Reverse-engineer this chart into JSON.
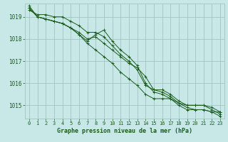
{
  "background_color": "#c8e8e8",
  "plot_bg_color": "#c8e8e8",
  "grid_color": "#a0c4c4",
  "line_color": "#1a5c1a",
  "marker_color": "#1a5c1a",
  "xlabel": "Graphe pression niveau de la mer (hPa)",
  "ylim": [
    1014.4,
    1019.6
  ],
  "xlim": [
    -0.5,
    23.5
  ],
  "yticks": [
    1015,
    1016,
    1017,
    1018,
    1019
  ],
  "xticks": [
    0,
    1,
    2,
    3,
    4,
    5,
    6,
    7,
    8,
    9,
    10,
    11,
    12,
    13,
    14,
    15,
    16,
    17,
    18,
    19,
    20,
    21,
    22,
    23
  ],
  "series": [
    [
      1019.3,
      1019.1,
      1019.1,
      1019.0,
      1019.0,
      1018.8,
      1018.6,
      1018.3,
      1018.3,
      1018.1,
      1017.7,
      1017.3,
      1017.0,
      1016.6,
      1015.9,
      1015.7,
      1015.7,
      1015.5,
      1015.2,
      1015.0,
      1015.0,
      1015.0,
      1014.9,
      1014.7
    ],
    [
      1019.4,
      1019.0,
      1018.9,
      1018.8,
      1018.7,
      1018.5,
      1018.2,
      1017.9,
      1018.2,
      1018.4,
      1017.9,
      1017.5,
      1017.2,
      1016.8,
      1016.0,
      1015.6,
      1015.5,
      1015.3,
      1015.0,
      1014.8,
      1014.8,
      1014.8,
      1014.7,
      1014.7
    ],
    [
      1019.5,
      1019.0,
      1018.9,
      1018.8,
      1018.7,
      1018.5,
      1018.3,
      1018.0,
      1018.1,
      1017.8,
      1017.5,
      1017.2,
      1016.9,
      1016.7,
      1016.3,
      1015.7,
      1015.6,
      1015.4,
      1015.1,
      1015.0,
      1015.0,
      1015.0,
      1014.8,
      1014.6
    ],
    [
      1019.4,
      1019.0,
      1018.9,
      1018.8,
      1018.7,
      1018.5,
      1018.2,
      1017.8,
      1017.5,
      1017.2,
      1016.9,
      1016.5,
      1016.2,
      1015.9,
      1015.5,
      1015.3,
      1015.3,
      1015.3,
      1015.1,
      1014.9,
      1014.8,
      1014.8,
      1014.7,
      1014.5
    ]
  ]
}
